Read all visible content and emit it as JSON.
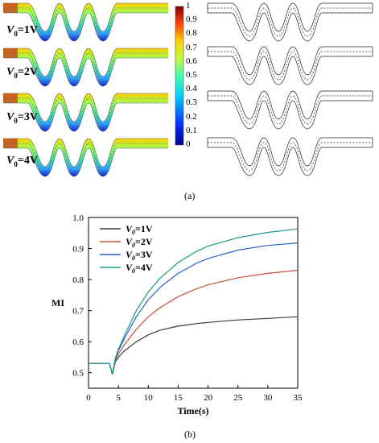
{
  "figure_a": {
    "caption": "(a)",
    "rows": [
      {
        "voltage_label": "V",
        "voltage_sub": "0",
        "voltage_value": "=1V"
      },
      {
        "voltage_label": "V",
        "voltage_sub": "0",
        "voltage_value": "=2V"
      },
      {
        "voltage_label": "V",
        "voltage_sub": "0",
        "voltage_value": "=3V"
      },
      {
        "voltage_label": "V",
        "voltage_sub": "0",
        "voltage_value": "=4V"
      }
    ],
    "colorbar_ticks": [
      "1",
      "0.9",
      "0.8",
      "0.7",
      "0.6",
      "0.5",
      "0.4",
      "0.3",
      "0.2",
      "0.1",
      "0"
    ]
  },
  "figure_b": {
    "caption": "(b)",
    "chart_data": {
      "type": "line",
      "xlabel": "Time(s)",
      "ylabel": "MI",
      "xlim": [
        0,
        35
      ],
      "ylim": [
        0.45,
        1.0
      ],
      "xticks": [
        "0",
        "5",
        "10",
        "15",
        "20",
        "25",
        "30",
        "35"
      ],
      "yticks": [
        "0.5",
        "0.6",
        "0.7",
        "0.8",
        "0.9",
        "1.0"
      ],
      "legend_position": "top-left",
      "series": [
        {
          "name": "V0=1V",
          "legend_sym": "V",
          "legend_sub": "0",
          "legend_val": "=1V",
          "color": "#3a3a3a",
          "x": [
            0,
            3.5,
            4,
            4.5,
            5,
            6,
            7,
            8,
            10,
            12,
            15,
            18,
            20,
            25,
            30,
            35
          ],
          "y": [
            0.53,
            0.53,
            0.495,
            0.535,
            0.55,
            0.57,
            0.585,
            0.6,
            0.622,
            0.637,
            0.65,
            0.658,
            0.662,
            0.67,
            0.675,
            0.68
          ]
        },
        {
          "name": "V0=2V",
          "legend_sym": "V",
          "legend_sub": "0",
          "legend_val": "=2V",
          "color": "#c8503a",
          "x": [
            0,
            3.5,
            4,
            4.5,
            5,
            6,
            7,
            8,
            10,
            12,
            15,
            18,
            20,
            25,
            30,
            35
          ],
          "y": [
            0.53,
            0.53,
            0.495,
            0.54,
            0.56,
            0.59,
            0.615,
            0.64,
            0.68,
            0.71,
            0.745,
            0.77,
            0.783,
            0.806,
            0.82,
            0.83
          ]
        },
        {
          "name": "V0=3V",
          "legend_sym": "V",
          "legend_sub": "0",
          "legend_val": "=3V",
          "color": "#2b5fc4",
          "x": [
            0,
            3.5,
            4,
            4.5,
            5,
            6,
            7,
            8,
            10,
            12,
            15,
            18,
            20,
            25,
            30,
            35
          ],
          "y": [
            0.53,
            0.53,
            0.495,
            0.545,
            0.57,
            0.61,
            0.645,
            0.68,
            0.735,
            0.775,
            0.82,
            0.852,
            0.868,
            0.895,
            0.91,
            0.918
          ]
        },
        {
          "name": "V0=4V",
          "legend_sym": "V",
          "legend_sub": "0",
          "legend_val": "=4V",
          "color": "#1f9a8a",
          "x": [
            0,
            3.5,
            4,
            4.5,
            5,
            6,
            7,
            8,
            10,
            12,
            15,
            18,
            20,
            25,
            30,
            35
          ],
          "y": [
            0.53,
            0.53,
            0.495,
            0.548,
            0.575,
            0.62,
            0.66,
            0.7,
            0.76,
            0.805,
            0.855,
            0.89,
            0.908,
            0.935,
            0.952,
            0.963
          ]
        }
      ]
    }
  }
}
